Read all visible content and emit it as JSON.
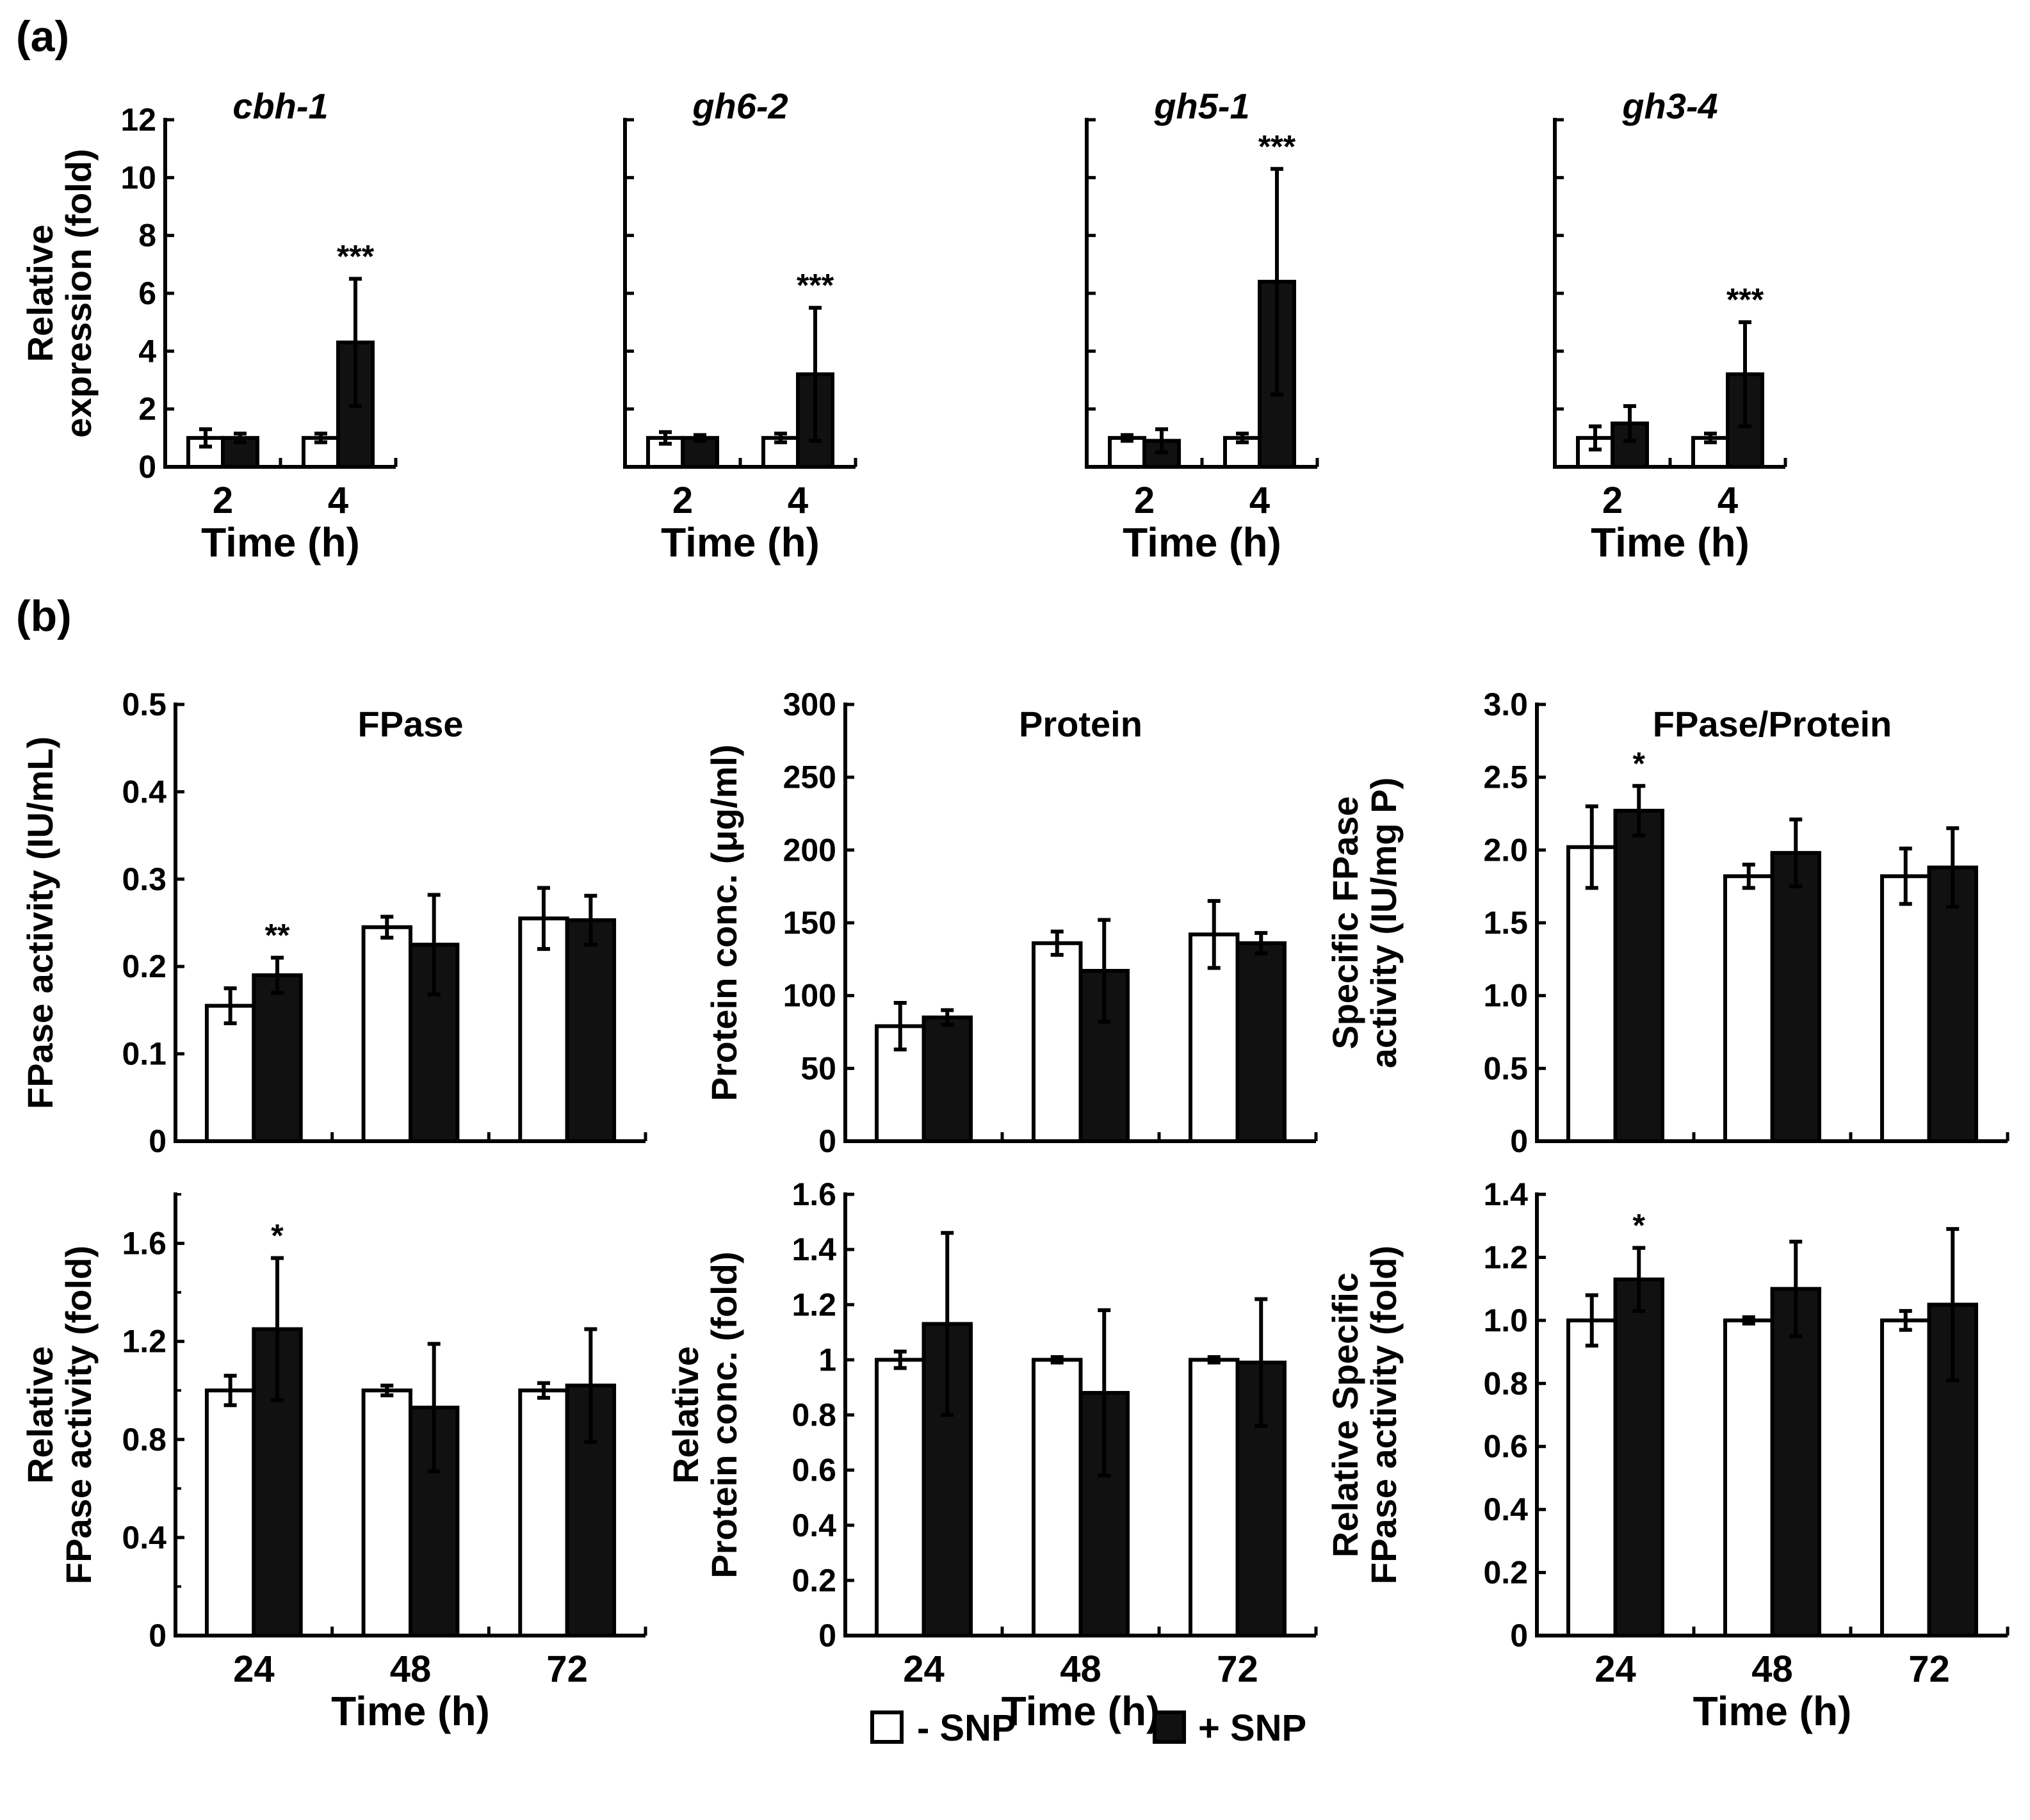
{
  "figure": {
    "panel_a_label": "(a)",
    "panel_b_label": "(b)",
    "legend": [
      {
        "label": "- SNP",
        "color": "#ffffff"
      },
      {
        "label": "+ SNP",
        "color": "#111111"
      }
    ]
  },
  "chart_data": [
    {
      "id": "a1",
      "type": "bar",
      "title": "cbh-1",
      "title_italic": true,
      "ylabel": [
        "Relative",
        "expression (fold)"
      ],
      "xlabel": "Time (h)",
      "categories": [
        "2",
        "4"
      ],
      "ylim": [
        0,
        12
      ],
      "yticks": [
        "0",
        "2",
        "4",
        "6",
        "8",
        "10",
        "12"
      ],
      "show_yticks": true,
      "show_xtick_labels": true,
      "series": [
        {
          "name": "- SNP",
          "values": [
            1.0,
            1.0
          ],
          "errors": [
            0.3,
            0.15
          ]
        },
        {
          "name": "+ SNP",
          "values": [
            1.0,
            4.3
          ],
          "errors": [
            0.15,
            2.2
          ]
        }
      ],
      "annotations": [
        {
          "category": 1,
          "series": 1,
          "text": "***"
        }
      ]
    },
    {
      "id": "a2",
      "type": "bar",
      "title": "gh6-2",
      "title_italic": true,
      "ylabel": null,
      "xlabel": "Time (h)",
      "categories": [
        "2",
        "4"
      ],
      "ylim": [
        0,
        12
      ],
      "yticks": [],
      "show_yticks": false,
      "show_xtick_labels": true,
      "series": [
        {
          "name": "- SNP",
          "values": [
            1.0,
            1.0
          ],
          "errors": [
            0.2,
            0.15
          ]
        },
        {
          "name": "+ SNP",
          "values": [
            1.0,
            3.2
          ],
          "errors": [
            0.1,
            2.3
          ]
        }
      ],
      "annotations": [
        {
          "category": 1,
          "series": 1,
          "text": "***"
        }
      ]
    },
    {
      "id": "a3",
      "type": "bar",
      "title": "gh5-1",
      "title_italic": true,
      "ylabel": null,
      "xlabel": "Time (h)",
      "categories": [
        "2",
        "4"
      ],
      "ylim": [
        0,
        12
      ],
      "yticks": [],
      "show_yticks": false,
      "show_xtick_labels": true,
      "series": [
        {
          "name": "- SNP",
          "values": [
            1.0,
            1.0
          ],
          "errors": [
            0.1,
            0.15
          ]
        },
        {
          "name": "+ SNP",
          "values": [
            0.9,
            6.4
          ],
          "errors": [
            0.4,
            3.9
          ]
        }
      ],
      "annotations": [
        {
          "category": 1,
          "series": 1,
          "text": "***"
        }
      ]
    },
    {
      "id": "a4",
      "type": "bar",
      "title": "gh3-4",
      "title_italic": true,
      "ylabel": null,
      "xlabel": "Time (h)",
      "categories": [
        "2",
        "4"
      ],
      "ylim": [
        0,
        12
      ],
      "yticks": [],
      "show_yticks": false,
      "show_xtick_labels": true,
      "series": [
        {
          "name": "- SNP",
          "values": [
            1.0,
            1.0
          ],
          "errors": [
            0.4,
            0.15
          ]
        },
        {
          "name": "+ SNP",
          "values": [
            1.5,
            3.2
          ],
          "errors": [
            0.6,
            1.8
          ]
        }
      ],
      "annotations": [
        {
          "category": 1,
          "series": 1,
          "text": "***"
        }
      ]
    },
    {
      "id": "b1",
      "type": "bar",
      "title": "FPase",
      "title_italic": false,
      "ylabel": [
        "FPase activity (IU/mL)"
      ],
      "xlabel": null,
      "categories": [
        "24",
        "48",
        "72"
      ],
      "ylim": [
        0,
        0.5
      ],
      "yticks": [
        "0",
        "0.1",
        "0.2",
        "0.3",
        "0.4",
        "0.5"
      ],
      "show_yticks": true,
      "show_xtick_labels": false,
      "series": [
        {
          "name": "- SNP",
          "values": [
            0.155,
            0.245,
            0.255
          ],
          "errors": [
            0.02,
            0.012,
            0.035
          ]
        },
        {
          "name": "+ SNP",
          "values": [
            0.19,
            0.225,
            0.253
          ],
          "errors": [
            0.02,
            0.057,
            0.028
          ]
        }
      ],
      "annotations": [
        {
          "category": 0,
          "series": 1,
          "text": "**"
        }
      ]
    },
    {
      "id": "b2",
      "type": "bar",
      "title": "Protein",
      "title_italic": false,
      "ylabel": [
        "Protein conc. (μg/ml)"
      ],
      "xlabel": null,
      "categories": [
        "24",
        "48",
        "72"
      ],
      "ylim": [
        0,
        300
      ],
      "yticks": [
        "0",
        "50",
        "100",
        "150",
        "200",
        "250",
        "300"
      ],
      "show_yticks": true,
      "show_xtick_labels": false,
      "series": [
        {
          "name": "- SNP",
          "values": [
            79,
            136,
            142
          ],
          "errors": [
            16,
            8,
            23
          ]
        },
        {
          "name": "+ SNP",
          "values": [
            85,
            117,
            136
          ],
          "errors": [
            5,
            35,
            7
          ]
        }
      ],
      "annotations": []
    },
    {
      "id": "b3",
      "type": "bar",
      "title": "FPase/Protein",
      "title_italic": false,
      "ylabel": [
        "Specific FPase",
        "activity (IU/mg P)"
      ],
      "xlabel": null,
      "categories": [
        "24",
        "48",
        "72"
      ],
      "ylim": [
        0,
        3.0
      ],
      "yticks": [
        "0",
        "0.5",
        "1.0",
        "1.5",
        "2.0",
        "2.5",
        "3.0"
      ],
      "show_yticks": true,
      "show_xtick_labels": false,
      "series": [
        {
          "name": "- SNP",
          "values": [
            2.02,
            1.82,
            1.82
          ],
          "errors": [
            0.28,
            0.08,
            0.19
          ]
        },
        {
          "name": "+ SNP",
          "values": [
            2.27,
            1.98,
            1.88
          ],
          "errors": [
            0.17,
            0.23,
            0.27
          ]
        }
      ],
      "annotations": [
        {
          "category": 0,
          "series": 1,
          "text": "*"
        }
      ]
    },
    {
      "id": "b4",
      "type": "bar",
      "title": null,
      "title_italic": false,
      "ylabel": [
        "Relative",
        "FPase activity (fold)"
      ],
      "xlabel": "Time (h)",
      "categories": [
        "24",
        "48",
        "72"
      ],
      "ylim": [
        0,
        1.8
      ],
      "yticks": [
        "0",
        "0.4",
        "0.8",
        "1.2",
        "1.6"
      ],
      "ytick_values": [
        0,
        0.4,
        0.8,
        1.2,
        1.6
      ],
      "show_yticks": true,
      "show_xtick_labels": true,
      "series": [
        {
          "name": "- SNP",
          "values": [
            1.0,
            1.0,
            1.0
          ],
          "errors": [
            0.06,
            0.02,
            0.03
          ]
        },
        {
          "name": "+ SNP",
          "values": [
            1.25,
            0.93,
            1.02
          ],
          "errors": [
            0.29,
            0.26,
            0.23
          ]
        }
      ],
      "annotations": [
        {
          "category": 0,
          "series": 1,
          "text": "*"
        }
      ]
    },
    {
      "id": "b5",
      "type": "bar",
      "title": null,
      "title_italic": false,
      "ylabel": [
        "Relative",
        "Protein conc. (fold)"
      ],
      "xlabel": "Time (h)",
      "categories": [
        "24",
        "48",
        "72"
      ],
      "ylim": [
        0,
        1.6
      ],
      "yticks": [
        "0",
        "0.2",
        "0.4",
        "0.6",
        "0.8",
        "1",
        "1.2",
        "1.4",
        "1.6"
      ],
      "show_yticks": true,
      "show_xtick_labels": true,
      "series": [
        {
          "name": "- SNP",
          "values": [
            1.0,
            1.0,
            1.0
          ],
          "errors": [
            0.03,
            0.01,
            0.01
          ]
        },
        {
          "name": "+ SNP",
          "values": [
            1.13,
            0.88,
            0.99
          ],
          "errors": [
            0.33,
            0.3,
            0.23
          ]
        }
      ],
      "annotations": []
    },
    {
      "id": "b6",
      "type": "bar",
      "title": null,
      "title_italic": false,
      "ylabel": [
        "Relative Specific",
        "FPase activity (fold)"
      ],
      "xlabel": "Time (h)",
      "categories": [
        "24",
        "48",
        "72"
      ],
      "ylim": [
        0,
        1.4
      ],
      "yticks": [
        "0",
        "0.2",
        "0.4",
        "0.6",
        "0.8",
        "1.0",
        "1.2",
        "1.4"
      ],
      "show_yticks": true,
      "show_xtick_labels": true,
      "series": [
        {
          "name": "- SNP",
          "values": [
            1.0,
            1.0,
            1.0
          ],
          "errors": [
            0.08,
            0.01,
            0.03
          ]
        },
        {
          "name": "+ SNP",
          "values": [
            1.13,
            1.1,
            1.05
          ],
          "errors": [
            0.1,
            0.15,
            0.24
          ]
        }
      ],
      "annotations": [
        {
          "category": 0,
          "series": 1,
          "text": "*"
        }
      ]
    }
  ]
}
